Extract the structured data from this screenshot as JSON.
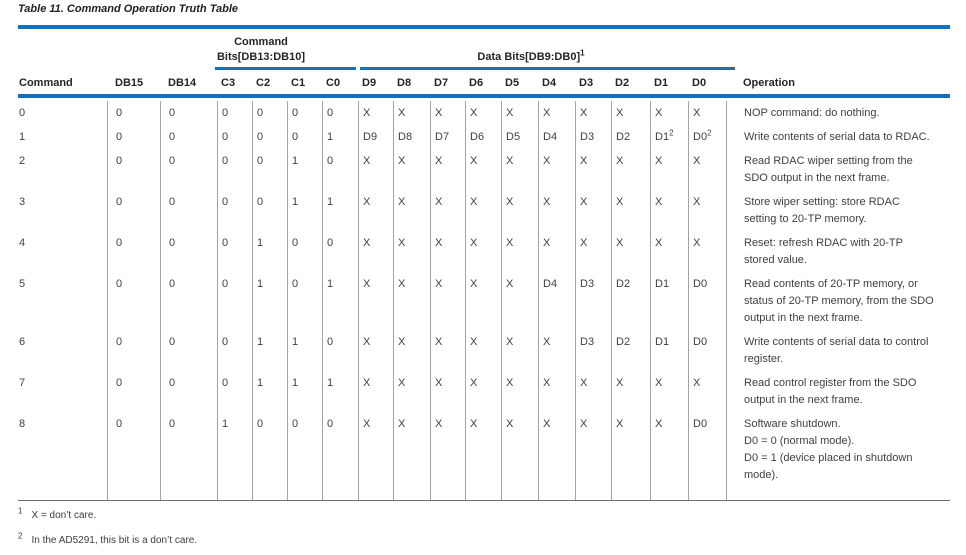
{
  "colors": {
    "accent_blue": "#1173bf",
    "grid_line": "#a3a3a3",
    "bottom_rule": "#6f6f6f"
  },
  "table": {
    "title": "Table 11. Command Operation Truth Table",
    "group_headers": {
      "command_bits_line1": "Command",
      "command_bits_line2": "Bits[DB13:DB10]",
      "data_bits": "Data Bits[DB9:DB0]",
      "data_bits_sup": "1"
    },
    "column_headers": [
      "Command",
      "DB15",
      "DB14",
      "C3",
      "C2",
      "C1",
      "C0",
      "D9",
      "D8",
      "D7",
      "D6",
      "D5",
      "D4",
      "D3",
      "D2",
      "D1",
      "D0",
      "Operation"
    ],
    "rows": [
      {
        "command": "0",
        "db15": "0",
        "db14": "0",
        "cmd_bits": [
          "0",
          "0",
          "0",
          "0"
        ],
        "data_bits": [
          "X",
          "X",
          "X",
          "X",
          "X",
          "X",
          "X",
          "X",
          "X",
          "X"
        ],
        "operation": [
          "NOP command: do nothing."
        ]
      },
      {
        "command": "1",
        "db15": "0",
        "db14": "0",
        "cmd_bits": [
          "0",
          "0",
          "0",
          "1"
        ],
        "data_bits": [
          "D9",
          "D8",
          "D7",
          "D6",
          "D5",
          "D4",
          "D3",
          "D2",
          "D1^2",
          "D0^2"
        ],
        "operation": [
          "Write contents of serial data to RDAC."
        ]
      },
      {
        "command": "2",
        "db15": "0",
        "db14": "0",
        "cmd_bits": [
          "0",
          "0",
          "1",
          "0"
        ],
        "data_bits": [
          "X",
          "X",
          "X",
          "X",
          "X",
          "X",
          "X",
          "X",
          "X",
          "X"
        ],
        "operation": [
          "Read RDAC wiper setting from the",
          "SDO output in the next frame."
        ]
      },
      {
        "command": "3",
        "db15": "0",
        "db14": "0",
        "cmd_bits": [
          "0",
          "0",
          "1",
          "1"
        ],
        "data_bits": [
          "X",
          "X",
          "X",
          "X",
          "X",
          "X",
          "X",
          "X",
          "X",
          "X"
        ],
        "operation": [
          "Store wiper setting: store RDAC",
          "setting to 20-TP memory."
        ]
      },
      {
        "command": "4",
        "db15": "0",
        "db14": "0",
        "cmd_bits": [
          "0",
          "1",
          "0",
          "0"
        ],
        "data_bits": [
          "X",
          "X",
          "X",
          "X",
          "X",
          "X",
          "X",
          "X",
          "X",
          "X"
        ],
        "operation": [
          "Reset: refresh RDAC with 20-TP",
          "stored value."
        ]
      },
      {
        "command": "5",
        "db15": "0",
        "db14": "0",
        "cmd_bits": [
          "0",
          "1",
          "0",
          "1"
        ],
        "data_bits": [
          "X",
          "X",
          "X",
          "X",
          "X",
          "D4",
          "D3",
          "D2",
          "D1",
          "D0"
        ],
        "operation": [
          "Read contents of 20-TP memory, or",
          "status of 20-TP memory, from the SDO",
          "output in the next frame."
        ]
      },
      {
        "command": "6",
        "db15": "0",
        "db14": "0",
        "cmd_bits": [
          "0",
          "1",
          "1",
          "0"
        ],
        "data_bits": [
          "X",
          "X",
          "X",
          "X",
          "X",
          "X",
          "D3",
          "D2",
          "D1",
          "D0"
        ],
        "operation": [
          "Write contents of serial data to control",
          "register."
        ]
      },
      {
        "command": "7",
        "db15": "0",
        "db14": "0",
        "cmd_bits": [
          "0",
          "1",
          "1",
          "1"
        ],
        "data_bits": [
          "X",
          "X",
          "X",
          "X",
          "X",
          "X",
          "X",
          "X",
          "X",
          "X"
        ],
        "operation": [
          "Read control register from the SDO",
          "output in the next frame."
        ]
      },
      {
        "command": "8",
        "db15": "0",
        "db14": "0",
        "cmd_bits": [
          "1",
          "0",
          "0",
          "0"
        ],
        "data_bits": [
          "X",
          "X",
          "X",
          "X",
          "X",
          "X",
          "X",
          "X",
          "X",
          "D0"
        ],
        "operation": [
          "Software shutdown.",
          "D0 = 0 (normal mode).",
          "D0 = 1 (device placed in shutdown",
          "mode)."
        ]
      }
    ],
    "footnotes": [
      {
        "marker": "1",
        "text": "X = don’t care."
      },
      {
        "marker": "2",
        "text": "In the AD5291, this bit is a don’t care."
      }
    ]
  }
}
